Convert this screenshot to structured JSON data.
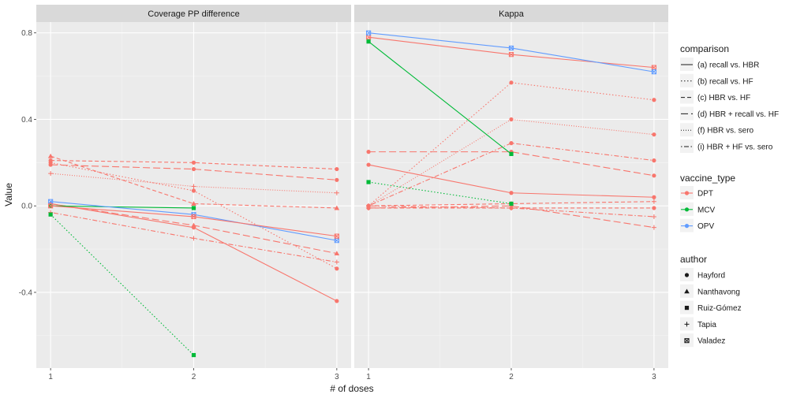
{
  "chart_data": {
    "type": "line",
    "xlabel": "# of doses",
    "ylabel": "Value",
    "x": [
      1,
      2,
      3
    ],
    "xlim": [
      0.9,
      3.1
    ],
    "ylim": [
      -0.75,
      0.85
    ],
    "y_ticks": [
      -0.4,
      0.0,
      0.4,
      0.8
    ],
    "y_tick_labels": [
      "-0.4",
      "0.0",
      "0.4",
      "0.8"
    ],
    "x_tick_labels": [
      "1",
      "2",
      "3"
    ],
    "grid": true,
    "legend_position": "right",
    "colors": {
      "DPT": "#F8766D",
      "MCV": "#00BA38",
      "OPV": "#619CFF"
    },
    "legends": {
      "comparison": {
        "title": "comparison",
        "entries": [
          {
            "label": "(a) recall vs. HBR",
            "dash": "solid"
          },
          {
            "label": "(b) recall vs. HF",
            "dash": "dotted"
          },
          {
            "label": "(c) HBR vs. HF",
            "dash": "dashed"
          },
          {
            "label": "(d) HBR + recall vs. HF",
            "dash": "longdash"
          },
          {
            "label": "(f) HBR vs. sero",
            "dash": "dotted2"
          },
          {
            "label": "(i) HBR + HF vs. sero",
            "dash": "dotdash"
          }
        ]
      },
      "vaccine_type": {
        "title": "vaccine_type",
        "entries": [
          {
            "label": "DPT",
            "color": "#F8766D"
          },
          {
            "label": "MCV",
            "color": "#00BA38"
          },
          {
            "label": "OPV",
            "color": "#619CFF"
          }
        ]
      },
      "author": {
        "title": "author",
        "entries": [
          {
            "label": "Hayford",
            "shape": "circle"
          },
          {
            "label": "Nanthavong",
            "shape": "triangle"
          },
          {
            "label": "Ruiz-Gómez",
            "shape": "square"
          },
          {
            "label": "Tapia",
            "shape": "plus"
          },
          {
            "label": "Valadez",
            "shape": "squarecross"
          }
        ]
      }
    },
    "panels": [
      {
        "title": "Coverage PP difference",
        "series": [
          {
            "vaccine": "DPT",
            "comparison": "(a) recall vs. HBR",
            "author": "Hayford",
            "values": [
              0.01,
              -0.1,
              -0.44
            ]
          },
          {
            "vaccine": "DPT",
            "comparison": "(b) recall vs. HF",
            "author": "Hayford",
            "values": [
              0.2,
              0.07,
              -0.29
            ]
          },
          {
            "vaccine": "DPT",
            "comparison": "(c) HBR vs. HF",
            "author": "Hayford",
            "values": [
              0.21,
              0.2,
              0.17
            ]
          },
          {
            "vaccine": "DPT",
            "comparison": "(d) HBR + recall vs. HF",
            "author": "Hayford",
            "values": [
              0.19,
              0.17,
              0.12
            ]
          },
          {
            "vaccine": "DPT",
            "comparison": "(f) HBR vs. sero",
            "author": "Tapia",
            "values": [
              0.15,
              0.09,
              0.06
            ]
          },
          {
            "vaccine": "DPT",
            "comparison": "(i) HBR + HF vs. sero",
            "author": "Tapia",
            "values": [
              -0.03,
              -0.15,
              -0.26
            ]
          },
          {
            "vaccine": "DPT",
            "comparison": "(c) HBR vs. HF",
            "author": "Nanthavong",
            "values": [
              0.23,
              0.01,
              -0.01
            ]
          },
          {
            "vaccine": "DPT",
            "comparison": "(d) HBR + recall vs. HF",
            "author": "Nanthavong",
            "values": [
              0.01,
              -0.09,
              -0.22
            ]
          },
          {
            "vaccine": "MCV",
            "comparison": "(a) recall vs. HBR",
            "author": "Ruiz-Gómez",
            "values": [
              0.0,
              -0.01,
              null
            ]
          },
          {
            "vaccine": "MCV",
            "comparison": "(b) recall vs. HF",
            "author": "Ruiz-Gómez",
            "values": [
              -0.04,
              -0.69,
              null
            ]
          },
          {
            "vaccine": "OPV",
            "comparison": "(a) recall vs. HBR",
            "author": "Valadez",
            "values": [
              0.02,
              -0.04,
              -0.16
            ]
          },
          {
            "vaccine": "DPT",
            "comparison": "(a) recall vs. HBR",
            "author": "Valadez",
            "values": [
              0.0,
              -0.05,
              -0.14
            ]
          }
        ]
      },
      {
        "title": "Kappa",
        "series": [
          {
            "vaccine": "DPT",
            "comparison": "(a) recall vs. HBR",
            "author": "Hayford",
            "values": [
              0.19,
              0.06,
              0.04
            ]
          },
          {
            "vaccine": "DPT",
            "comparison": "(a) recall vs. HBR",
            "author": "Valadez",
            "values": [
              0.78,
              0.7,
              0.64
            ]
          },
          {
            "vaccine": "DPT",
            "comparison": "(b) recall vs. HF",
            "author": "Hayford",
            "values": [
              0.0,
              0.57,
              0.49
            ]
          },
          {
            "vaccine": "DPT",
            "comparison": "(f) HBR vs. sero",
            "author": "Hayford",
            "values": [
              0.0,
              0.4,
              0.33
            ]
          },
          {
            "vaccine": "DPT",
            "comparison": "(i) HBR + HF vs. sero",
            "author": "Hayford",
            "values": [
              0.0,
              0.29,
              0.21
            ]
          },
          {
            "vaccine": "DPT",
            "comparison": "(d) HBR + recall vs. HF",
            "author": "Hayford",
            "values": [
              0.25,
              0.25,
              0.14
            ]
          },
          {
            "vaccine": "DPT",
            "comparison": "(c) HBR vs. HF",
            "author": "Tapia",
            "values": [
              0.0,
              0.01,
              0.02
            ]
          },
          {
            "vaccine": "DPT",
            "comparison": "(c) HBR vs. HF",
            "author": "Hayford",
            "values": [
              -0.01,
              -0.01,
              -0.01
            ]
          },
          {
            "vaccine": "DPT",
            "comparison": "(i) HBR + HF vs. sero",
            "author": "Tapia",
            "values": [
              0.0,
              -0.01,
              -0.05
            ]
          },
          {
            "vaccine": "DPT",
            "comparison": "(d) HBR + recall vs. HF",
            "author": "Tapia",
            "values": [
              -0.01,
              0.0,
              -0.1
            ]
          },
          {
            "vaccine": "MCV",
            "comparison": "(a) recall vs. HBR",
            "author": "Ruiz-Gómez",
            "values": [
              0.76,
              0.24,
              null
            ]
          },
          {
            "vaccine": "MCV",
            "comparison": "(b) recall vs. HF",
            "author": "Ruiz-Gómez",
            "values": [
              0.11,
              0.01,
              null
            ]
          },
          {
            "vaccine": "OPV",
            "comparison": "(a) recall vs. HBR",
            "author": "Valadez",
            "values": [
              0.8,
              0.73,
              0.62
            ]
          }
        ]
      }
    ]
  }
}
